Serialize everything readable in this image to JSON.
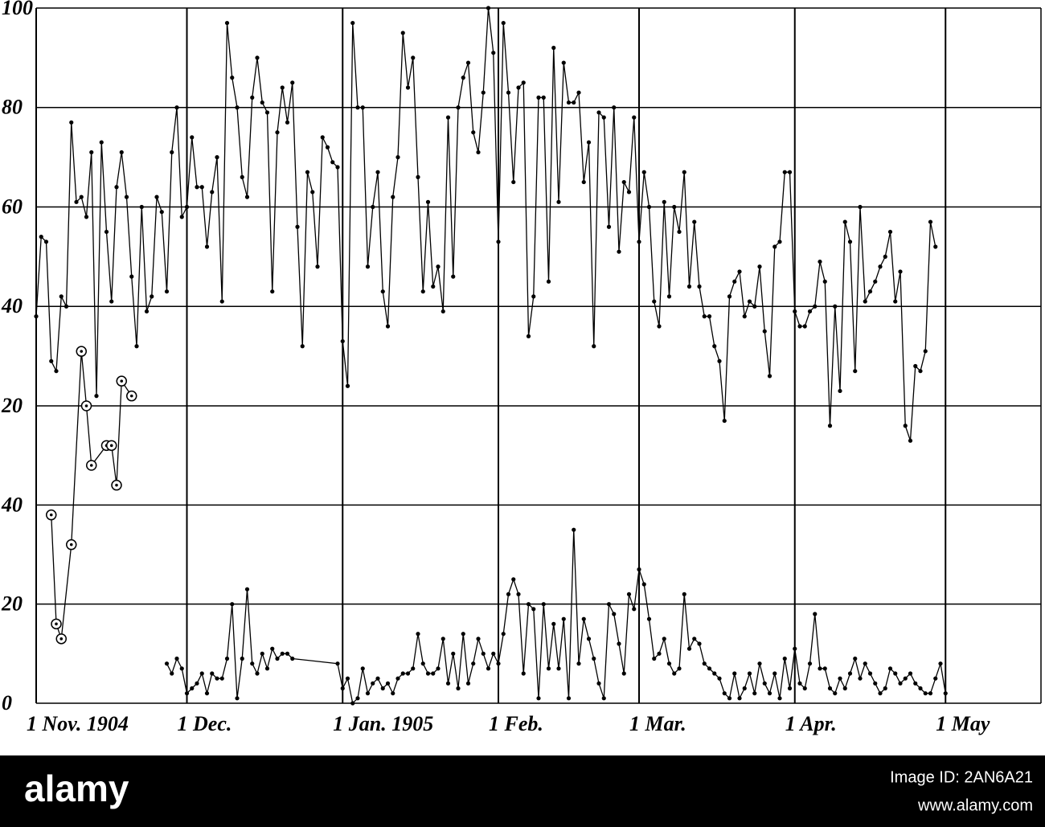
{
  "chart_data": {
    "type": "line",
    "xlim": [
      0,
      200
    ],
    "xticks": [
      {
        "value": 0,
        "label": "1 Nov. 1904"
      },
      {
        "value": 30,
        "label": "1 Dec."
      },
      {
        "value": 61,
        "label": "1 Jan. 1905"
      },
      {
        "value": 92,
        "label": "1 Feb."
      },
      {
        "value": 120,
        "label": "1 Mar."
      },
      {
        "value": 151,
        "label": "1 Apr."
      },
      {
        "value": 181,
        "label": "1 May"
      }
    ],
    "ylim": [
      20,
      100
    ],
    "yticks": [
      20,
      40,
      60,
      80,
      100
    ],
    "y2lim": [
      0,
      60
    ],
    "y2ticks": [
      0,
      20,
      40
    ],
    "grid": true,
    "series": [
      {
        "color": "#000000",
        "axis": "y",
        "marker": "dot",
        "x": [
          0,
          1,
          2,
          3,
          4,
          5,
          6,
          7,
          8,
          9,
          10,
          11,
          12,
          13,
          14,
          15,
          16,
          17,
          18,
          19,
          20,
          21,
          22,
          23,
          24,
          25,
          26,
          27,
          28,
          29,
          30,
          31,
          32,
          33,
          34,
          35,
          36,
          37,
          38,
          39,
          40,
          41,
          42,
          43,
          44,
          45,
          46,
          47,
          48,
          49,
          50,
          51,
          52,
          53,
          54,
          55,
          56,
          57,
          58,
          59,
          60,
          61,
          62,
          63,
          64,
          65,
          66,
          67,
          68,
          69,
          70,
          71,
          72,
          73,
          74,
          75,
          76,
          77,
          78,
          79,
          80,
          81,
          82,
          83,
          84,
          85,
          86,
          87,
          88,
          89,
          90,
          91,
          92,
          93,
          94,
          95,
          96,
          97,
          98,
          99,
          100,
          101,
          102,
          103,
          104,
          105,
          106,
          107,
          108,
          109,
          110,
          111,
          112,
          113,
          114,
          115,
          116,
          117,
          118,
          119,
          120,
          121,
          122,
          123,
          124,
          125,
          126,
          127,
          128,
          129,
          130,
          131,
          132,
          133,
          134,
          135,
          136,
          137,
          138,
          139,
          140,
          141,
          142,
          143,
          144,
          145,
          146,
          147,
          148,
          149,
          150,
          151,
          152,
          153,
          154,
          155,
          156,
          157,
          158,
          159,
          160,
          161,
          162,
          163,
          164,
          165,
          166,
          167,
          168,
          169,
          170,
          171,
          172,
          173,
          174,
          175,
          176,
          177,
          178,
          179
        ],
        "values": [
          38,
          54,
          53,
          29,
          27,
          42,
          40,
          77,
          61,
          62,
          58,
          71,
          22,
          73,
          55,
          41,
          64,
          71,
          62,
          46,
          32,
          60,
          39,
          42,
          62,
          59,
          43,
          71,
          80,
          58,
          60,
          74,
          64,
          64,
          52,
          63,
          70,
          41,
          97,
          86,
          80,
          66,
          62,
          82,
          90,
          81,
          79,
          43,
          75,
          84,
          77,
          85,
          56,
          32,
          67,
          63,
          48,
          74,
          72,
          69,
          68,
          33,
          24,
          97,
          80,
          80,
          48,
          60,
          67,
          43,
          36,
          62,
          70,
          95,
          84,
          90,
          66,
          43,
          61,
          44,
          48,
          39,
          78,
          46,
          80,
          86,
          89,
          75,
          71,
          83,
          100,
          91,
          53,
          97,
          83,
          65,
          84,
          85,
          34,
          42,
          82,
          82,
          45,
          92,
          61,
          89,
          81,
          81,
          83,
          65,
          73,
          32,
          79,
          78,
          56,
          80,
          51,
          65,
          63,
          78,
          53,
          67,
          60,
          41,
          36,
          61,
          42,
          60,
          55,
          67,
          44,
          57,
          44,
          38,
          38,
          32,
          29,
          17,
          42,
          45,
          47,
          38,
          41,
          40,
          48,
          35,
          26,
          52,
          53,
          67,
          67,
          39,
          36,
          36,
          39,
          40,
          49,
          45,
          16,
          40,
          23,
          57,
          53,
          27,
          60,
          41,
          43,
          45,
          48,
          50,
          55,
          41,
          47,
          16,
          13,
          28,
          27,
          31,
          57,
          52
        ]
      },
      {
        "color": "#000000",
        "axis": "y2",
        "marker": "circle",
        "x": [
          3,
          4,
          5,
          7,
          9,
          10,
          11,
          14,
          15,
          16,
          17,
          19
        ],
        "values": [
          38,
          16,
          13,
          32,
          71,
          60,
          48,
          52,
          52,
          44,
          65,
          62
        ]
      },
      {
        "color": "#000000",
        "axis": "y2",
        "marker": "dot",
        "x": [
          26,
          27,
          28,
          29,
          30,
          31,
          32,
          33,
          34,
          35,
          36,
          37,
          38,
          39,
          40,
          41,
          42,
          43,
          44,
          45,
          46,
          47,
          48,
          49,
          50,
          51,
          60,
          61,
          62,
          63,
          64,
          65,
          66,
          67,
          68,
          69,
          70,
          71,
          72,
          73,
          74,
          75,
          76,
          77,
          78,
          79,
          80,
          81,
          82,
          83,
          84,
          85,
          86,
          87,
          88,
          89,
          90,
          91,
          92,
          93,
          94,
          95,
          96,
          97,
          98,
          99,
          100,
          101,
          102,
          103,
          104,
          105,
          106,
          107,
          108,
          109,
          110,
          111,
          112,
          113,
          114,
          115,
          116,
          117,
          118,
          119,
          120,
          121,
          122,
          123,
          124,
          125,
          126,
          127,
          128,
          129,
          130,
          131,
          132,
          133,
          134,
          135,
          136,
          137,
          138,
          139,
          140,
          141,
          142,
          143,
          144,
          145,
          146,
          147,
          148,
          149,
          150,
          151,
          152,
          153,
          154,
          155,
          156,
          157,
          158,
          159,
          160,
          161,
          162,
          163,
          164,
          165,
          166,
          167,
          168,
          169,
          170,
          171,
          172,
          173,
          174,
          175,
          176,
          177,
          178,
          179,
          180,
          181
        ],
        "values": [
          8,
          6,
          9,
          7,
          2,
          3,
          4,
          6,
          2,
          6,
          5,
          5,
          9,
          20,
          1,
          9,
          23,
          8,
          6,
          10,
          7,
          11,
          9,
          10,
          10,
          9,
          8,
          3,
          5,
          0,
          1,
          7,
          2,
          4,
          5,
          3,
          4,
          2,
          5,
          6,
          6,
          7,
          14,
          8,
          6,
          6,
          7,
          13,
          4,
          10,
          3,
          14,
          4,
          8,
          13,
          10,
          7,
          10,
          8,
          14,
          22,
          25,
          22,
          6,
          20,
          19,
          1,
          20,
          7,
          16,
          7,
          17,
          1,
          35,
          8,
          17,
          13,
          9,
          4,
          1,
          20,
          18,
          12,
          6,
          22,
          19,
          27,
          24,
          17,
          9,
          10,
          13,
          8,
          6,
          7,
          22,
          11,
          13,
          12,
          8,
          7,
          6,
          5,
          2,
          1,
          6,
          1,
          3,
          6,
          2,
          8,
          4,
          2,
          6,
          1,
          9,
          3,
          11,
          4,
          3,
          8,
          18,
          7,
          7,
          3,
          2,
          5,
          3,
          6,
          9,
          5,
          8,
          6,
          4,
          2,
          3,
          7,
          6,
          4,
          5,
          6,
          4,
          3,
          2,
          2,
          5,
          8,
          2
        ]
      }
    ]
  },
  "watermark": {
    "brand": "alamy",
    "image_id": "Image ID: 2AN6A21",
    "url": "www.alamy.com"
  }
}
